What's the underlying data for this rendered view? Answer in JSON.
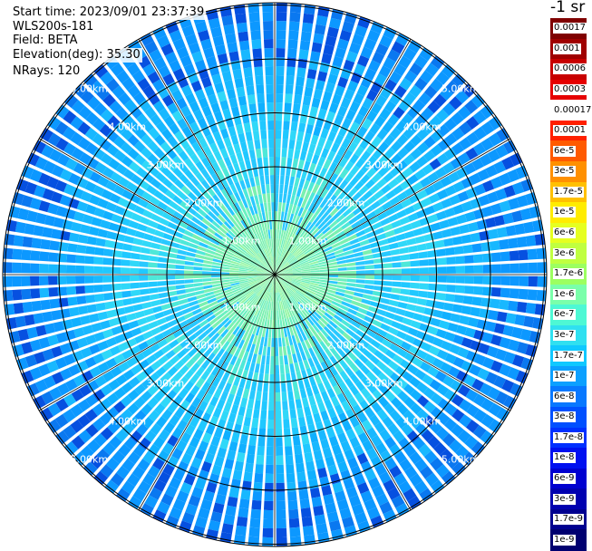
{
  "header": {
    "start_time": "Start time: 2023/09/01 23:37:39",
    "instrument": "WLS200s-181",
    "field": "Field: BETA",
    "elevation": "Elevation(deg): 35.30",
    "nrays": "NRays: 120"
  },
  "colorbar": {
    "title": "-1 sr",
    "labels": [
      "0.0017",
      "0.001",
      "0.0006",
      "0.0003",
      "0.00017",
      "0.0001",
      "6e-5",
      "3e-5",
      "1.7e-5",
      "1e-5",
      "6e-6",
      "3e-6",
      "1.7e-6",
      "1e-6",
      "6e-7",
      "3e-7",
      "1.7e-7",
      "1e-7",
      "6e-8",
      "3e-8",
      "1.7e-8",
      "1e-8",
      "6e-9",
      "3e-9",
      "1.7e-9",
      "1e-9"
    ],
    "colors": [
      "#800000",
      "#a00000",
      "#c80000",
      "#e60000",
      "#ffffff",
      "#ff2000",
      "#ff5a00",
      "#ff9000",
      "#ffc000",
      "#ffec00",
      "#e6ff20",
      "#c0ff40",
      "#9cff60",
      "#7affaa",
      "#4ef8d4",
      "#30e0f0",
      "#10c8ff",
      "#0ca0ff",
      "#0878ff",
      "#0050ff",
      "#0030ff",
      "#0010f0",
      "#0000d0",
      "#0000b0",
      "#000090",
      "#000070"
    ]
  },
  "range_rings": {
    "labels": [
      "1.00km",
      "2.00km",
      "3.00km",
      "4.00km",
      "5.00km"
    ]
  },
  "map_data": {
    "type": "ppi",
    "nrays": 120,
    "elevation_deg": 35.3,
    "max_range_km": 5.0,
    "spoke_step_deg": 30
  }
}
